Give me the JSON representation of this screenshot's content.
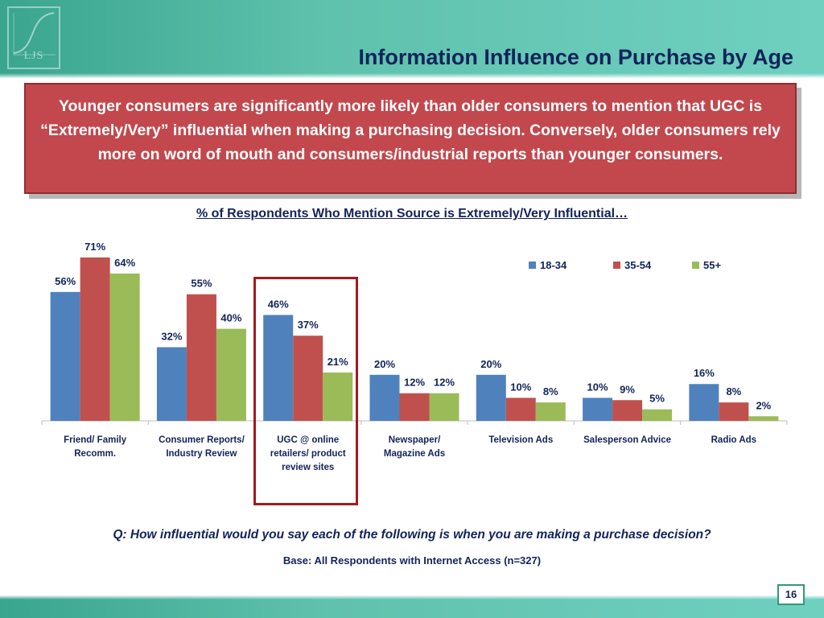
{
  "header": {
    "title": "Information Influence on Purchase by Age",
    "logo_text": "LJS"
  },
  "callout": {
    "text": "Younger consumers are significantly more likely than older consumers to mention that UGC is “Extremely/Very” influential when making a purchasing decision.  Conversely, older consumers rely more on word of mouth and consumers/industrial reports than younger consumers."
  },
  "question": "Q: How influential would you say each of the following is when you are making a purchase decision?",
  "base_note": "Base: All Respondents with Internet Access (n=327)",
  "page_number": "16",
  "colors": {
    "header_teal": "#5fc2ad",
    "callout_red": "#c2484d",
    "title_navy": "#13235a",
    "highlight_red": "#a4191f"
  },
  "chart_data": {
    "type": "bar",
    "title": "% of Respondents Who Mention Source is Extremely/Very Influential…",
    "categories": [
      [
        "Friend/ Family",
        "Recomm."
      ],
      [
        "Consumer Reports/",
        "Industry Review"
      ],
      [
        "UGC @ online",
        "retailers/ product",
        "review sites"
      ],
      [
        "Newspaper/",
        "Magazine Ads"
      ],
      [
        "Television Ads"
      ],
      [
        "Salesperson Advice"
      ],
      [
        "Radio Ads"
      ]
    ],
    "series": [
      {
        "name": "18-34",
        "color": "#4f81bd",
        "values": [
          56,
          32,
          46,
          20,
          20,
          10,
          16
        ]
      },
      {
        "name": "35-54",
        "color": "#c0504d",
        "values": [
          71,
          55,
          37,
          12,
          10,
          9,
          8
        ]
      },
      {
        "name": "55+",
        "color": "#9bbb59",
        "values": [
          64,
          40,
          21,
          12,
          8,
          5,
          2
        ]
      }
    ],
    "value_suffix": "%",
    "ylim": [
      0,
      80
    ],
    "grid": false,
    "legend": "top-right",
    "highlighted_category": 2
  }
}
